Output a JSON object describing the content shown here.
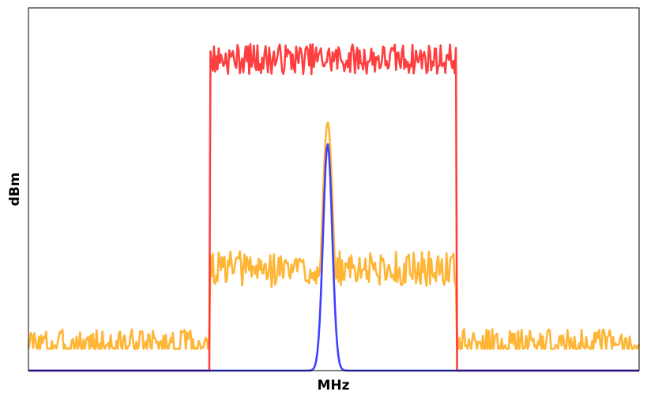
{
  "chart_data": {
    "type": "line",
    "title": "",
    "xlabel": "MHz",
    "ylabel": "dBm",
    "xlim": [
      0,
      100
    ],
    "ylim": [
      0,
      100
    ],
    "x_ticks": [],
    "y_ticks": [],
    "grid": false,
    "legend": "none",
    "series": [
      {
        "color": "#ff2a2a",
        "style": "flat-top noisy band",
        "baseline": 0,
        "band": [
          29.8,
          70.0
        ],
        "level": 85.5,
        "noise": 3.5,
        "seed": 7
      },
      {
        "color": "#ffad1f",
        "style": "noisy floor with center peak",
        "floor_outside": 6,
        "floor_outside_noise": 3.5,
        "floor_inside": 26,
        "floor_inside_noise": 4.5,
        "band": [
          29.8,
          70.0
        ],
        "peak_x": 49.0,
        "peak_value": 68.5,
        "peak_width": 0.9,
        "seed": 3
      },
      {
        "color": "#2b2bff",
        "style": "narrow gaussian",
        "baseline": 0,
        "peak_x": 49.0,
        "peak_value": 62.5,
        "peak_width": 0.75
      }
    ]
  }
}
